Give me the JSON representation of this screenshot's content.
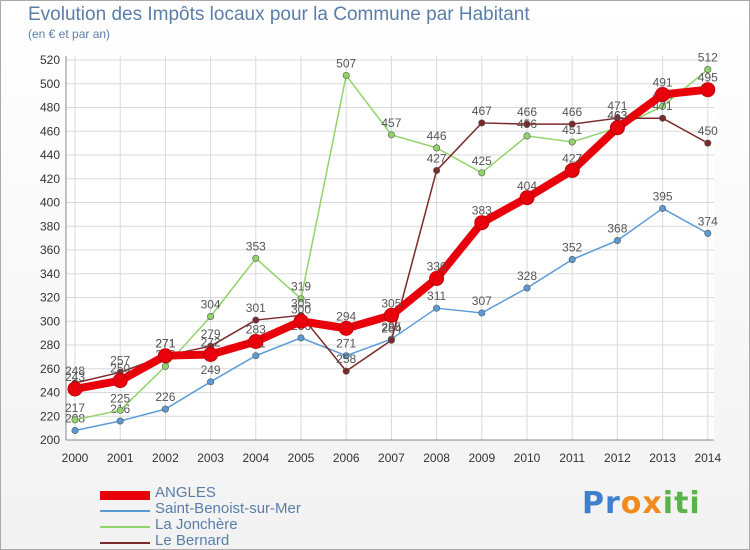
{
  "title": "Evolution des Impôts locaux pour la Commune par Habitant",
  "subtitle": "(en € et par an)",
  "logo": {
    "letters": [
      "P",
      "r",
      "o",
      "x",
      "i",
      "t",
      "i"
    ],
    "colors": [
      "#3f7fd0",
      "#3f7fd0",
      "#f08a1c",
      "#f08a1c",
      "#5bb24a",
      "#5bb24a",
      "#5bb24a"
    ]
  },
  "chart_data": {
    "type": "line",
    "x": [
      "2000",
      "2001",
      "2002",
      "2003",
      "2004",
      "2005",
      "2006",
      "2007",
      "2008",
      "2009",
      "2010",
      "2011",
      "2012",
      "2013",
      "2014"
    ],
    "ylim": [
      200,
      520
    ],
    "yticks": [
      "200",
      "220",
      "240",
      "260",
      "280",
      "300",
      "320",
      "340",
      "360",
      "380",
      "400",
      "420",
      "440",
      "460",
      "480",
      "500",
      "520"
    ],
    "grid": true,
    "legend_position": "bottom-left",
    "series": [
      {
        "name": "Saint-Benoist-sur-Mer",
        "color": "#5b9bd5",
        "values": [
          208,
          216,
          226,
          249,
          271,
          286,
          271,
          285,
          311,
          307,
          328,
          352,
          368,
          395,
          374
        ],
        "labels": [
          "208",
          "216",
          "226",
          "249",
          "271",
          "286",
          "271",
          "285",
          "311",
          "307",
          "328",
          "352",
          "368",
          "395",
          "374"
        ]
      },
      {
        "name": "La Jonchère",
        "color": "#90d46a",
        "values": [
          217,
          225,
          262,
          304,
          353,
          319,
          507,
          457,
          446,
          425,
          456,
          451,
          463,
          481,
          512
        ],
        "labels": [
          "217",
          "225",
          "262",
          "304",
          "353",
          "319",
          "507",
          "457",
          "446",
          "425",
          "456",
          "451",
          "463",
          "481",
          "512"
        ]
      },
      {
        "name": "Le Bernard",
        "color": "#7a2a2a",
        "values": [
          248,
          257,
          271,
          279,
          301,
          305,
          258,
          284,
          427,
          467,
          466,
          466,
          471,
          471,
          450
        ],
        "labels": [
          "248",
          "257",
          "271",
          "279",
          "301",
          "305",
          "258",
          "284",
          "427",
          "467",
          "466",
          "466",
          "471",
          "471",
          "450"
        ]
      },
      {
        "name": "ANGLES",
        "color": "#e8000a",
        "values": [
          243,
          250,
          271,
          272,
          283,
          300,
          294,
          305,
          336,
          383,
          404,
          427,
          463,
          491,
          495
        ],
        "labels": [
          "243",
          "250",
          "271",
          "272",
          "283",
          "300",
          "294",
          "305",
          "336",
          "383",
          "404",
          "427",
          "463",
          "491",
          "495"
        ]
      }
    ],
    "legend": [
      "ANGLES",
      "Saint-Benoist-sur-Mer",
      "La Jonchère",
      "Le Bernard"
    ]
  }
}
